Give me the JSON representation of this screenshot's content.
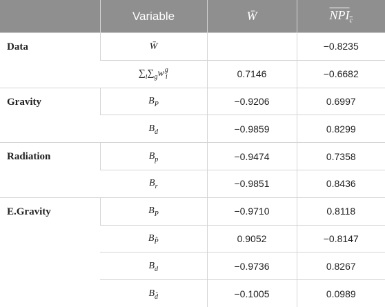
{
  "table": {
    "header": [
      [
        {
          "t": "Variable"
        }
      ],
      [
        {
          "t": "W̄"
        }
      ],
      [
        {
          "t": "NPI",
          "sub": "c"
        }
      ]
    ],
    "groups": [
      {
        "label": "Data",
        "rows": [
          {
            "variable": [
              {
                "t": "W̄"
              }
            ],
            "w": null,
            "npi": "−0.8235"
          },
          {
            "variable": [
              {
                "t": "∑",
                "sub": "i"
              },
              {
                "t": "∑",
                "sub": "g"
              },
              {
                "t": "w",
                "sub": "i",
                "sup": "g"
              }
            ],
            "w": "0.7146",
            "npi": "−0.6682"
          }
        ]
      },
      {
        "label": "Gravity",
        "rows": [
          {
            "variable": [
              {
                "t": "B",
                "sub": "P"
              }
            ],
            "w": "−0.9206",
            "npi": "0.6997"
          },
          {
            "variable": [
              {
                "t": "B",
                "sub": "d"
              }
            ],
            "w": "−0.9859",
            "npi": "0.8299"
          }
        ]
      },
      {
        "label": "Radiation",
        "rows": [
          {
            "variable": [
              {
                "t": "B",
                "sub": "p"
              }
            ],
            "w": "−0.9474",
            "npi": "0.7358"
          },
          {
            "variable": [
              {
                "t": "B",
                "sub": "r"
              }
            ],
            "w": "−0.9851",
            "npi": "0.8436"
          }
        ]
      },
      {
        "label": "E.Gravity",
        "rows": [
          {
            "variable": [
              {
                "t": "B",
                "sub": "P"
              }
            ],
            "w": "−0.9710",
            "npi": "0.8118"
          },
          {
            "variable": [
              {
                "t": "B",
                "sub": "P̂"
              }
            ],
            "w": "0.9052",
            "npi": "−0.8147"
          },
          {
            "variable": [
              {
                "t": "B",
                "sub": "d"
              }
            ],
            "w": "−0.9736",
            "npi": "0.8267"
          },
          {
            "variable": [
              {
                "t": "B",
                "sub": "d̂"
              }
            ],
            "w": "−0.1005",
            "npi": "0.0989"
          }
        ]
      }
    ]
  }
}
